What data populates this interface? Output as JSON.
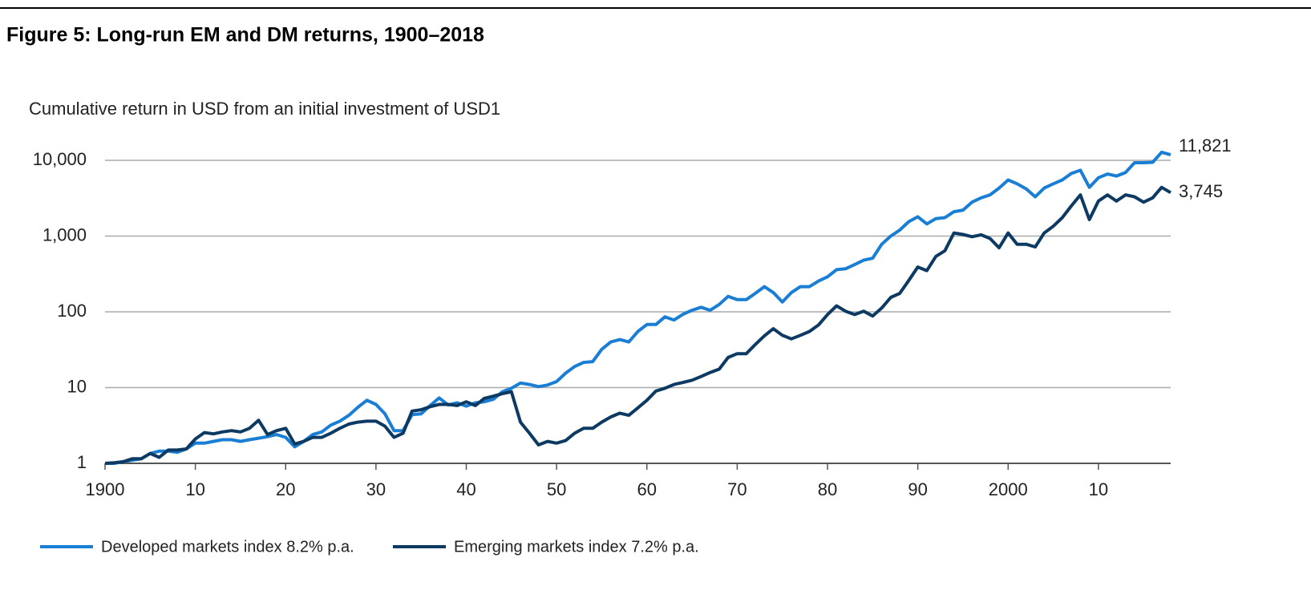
{
  "chart_data": {
    "type": "line",
    "title": "Figure 5: Long-run EM and DM returns, 1900–2018",
    "subtitle": "Cumulative return in USD from an initial investment of USD1",
    "x": [
      1900,
      1901,
      1902,
      1903,
      1904,
      1905,
      1906,
      1907,
      1908,
      1909,
      1910,
      1911,
      1912,
      1913,
      1914,
      1915,
      1916,
      1917,
      1918,
      1919,
      1920,
      1921,
      1922,
      1923,
      1924,
      1925,
      1926,
      1927,
      1928,
      1929,
      1930,
      1931,
      1932,
      1933,
      1934,
      1935,
      1936,
      1937,
      1938,
      1939,
      1940,
      1941,
      1942,
      1943,
      1944,
      1945,
      1946,
      1947,
      1948,
      1949,
      1950,
      1951,
      1952,
      1953,
      1954,
      1955,
      1956,
      1957,
      1958,
      1959,
      1960,
      1961,
      1962,
      1963,
      1964,
      1965,
      1966,
      1967,
      1968,
      1969,
      1970,
      1971,
      1972,
      1973,
      1974,
      1975,
      1976,
      1977,
      1978,
      1979,
      1980,
      1981,
      1982,
      1983,
      1984,
      1985,
      1986,
      1987,
      1988,
      1989,
      1990,
      1991,
      1992,
      1993,
      1994,
      1995,
      1996,
      1997,
      1998,
      1999,
      2000,
      2001,
      2002,
      2003,
      2004,
      2005,
      2006,
      2007,
      2008,
      2009,
      2010,
      2011,
      2012,
      2013,
      2014,
      2015,
      2016,
      2017,
      2018
    ],
    "series": [
      {
        "name": "Developed markets index 8.2% p.a.",
        "color": "#1a7fd4",
        "end_label": "11,821",
        "values": [
          1,
          1,
          1.05,
          1.1,
          1.15,
          1.35,
          1.45,
          1.45,
          1.4,
          1.55,
          1.85,
          1.85,
          1.95,
          2.05,
          2.05,
          1.95,
          2.05,
          2.15,
          2.25,
          2.4,
          2.2,
          1.65,
          1.95,
          2.4,
          2.6,
          3.2,
          3.6,
          4.3,
          5.5,
          6.8,
          6,
          4.5,
          2.7,
          2.7,
          4.4,
          4.5,
          5.8,
          7.3,
          5.9,
          6.3,
          5.7,
          6.3,
          6.5,
          7,
          8.8,
          9.8,
          11.5,
          11,
          10.3,
          10.8,
          12,
          15.5,
          19,
          21.5,
          22,
          32,
          40,
          43,
          40,
          55,
          68,
          68,
          86,
          78,
          93,
          105,
          115,
          105,
          125,
          160,
          145,
          145,
          175,
          215,
          180,
          135,
          180,
          215,
          215,
          255,
          290,
          360,
          370,
          420,
          480,
          510,
          780,
          1000,
          1200,
          1550,
          1800,
          1450,
          1700,
          1750,
          2100,
          2200,
          2800,
          3200,
          3500,
          4300,
          5500,
          4900,
          4200,
          3300,
          4300,
          4900,
          5500,
          6700,
          7400,
          4400,
          5900,
          6600,
          6200,
          6900,
          9300,
          9300,
          9400,
          12800,
          11821
        ]
      },
      {
        "name": "Emerging markets index 7.2% p.a.",
        "color": "#0d3a63",
        "end_label": "3,745",
        "values": [
          1,
          1.02,
          1.05,
          1.15,
          1.15,
          1.35,
          1.2,
          1.5,
          1.5,
          1.55,
          2.1,
          2.55,
          2.45,
          2.6,
          2.7,
          2.6,
          2.9,
          3.7,
          2.4,
          2.7,
          2.9,
          1.8,
          1.95,
          2.2,
          2.2,
          2.5,
          2.9,
          3.3,
          3.5,
          3.6,
          3.6,
          3.1,
          2.2,
          2.5,
          4.9,
          5.1,
          5.6,
          6,
          6,
          5.8,
          6.5,
          5.8,
          7.2,
          7.7,
          8.3,
          8.8,
          3.5,
          2.5,
          1.75,
          1.95,
          1.85,
          2,
          2.5,
          2.9,
          2.9,
          3.5,
          4.1,
          4.6,
          4.3,
          5.4,
          6.8,
          9,
          9.8,
          11,
          11.7,
          12.5,
          14,
          15.8,
          17.5,
          25,
          28,
          28,
          37,
          48,
          60,
          49,
          44,
          49,
          55,
          67,
          92,
          120,
          102,
          92,
          102,
          88,
          112,
          155,
          175,
          260,
          390,
          350,
          540,
          640,
          1100,
          1050,
          980,
          1040,
          930,
          700,
          1100,
          780,
          780,
          720,
          1100,
          1350,
          1750,
          2500,
          3500,
          1650,
          2900,
          3500,
          2900,
          3500,
          3300,
          2800,
          3200,
          4400,
          3745
        ]
      }
    ],
    "xlim": [
      1900,
      2018
    ],
    "xticks": [
      1900,
      {
        "value": 1910,
        "label": "10"
      },
      {
        "value": 1920,
        "label": "20"
      },
      {
        "value": 1930,
        "label": "30"
      },
      {
        "value": 1940,
        "label": "40"
      },
      {
        "value": 1950,
        "label": "50"
      },
      {
        "value": 1960,
        "label": "60"
      },
      {
        "value": 1970,
        "label": "70"
      },
      {
        "value": 1980,
        "label": "80"
      },
      {
        "value": 1990,
        "label": "90"
      },
      2000,
      {
        "value": 2010,
        "label": "10"
      }
    ],
    "ylim": [
      1,
      10000
    ],
    "log_y": true,
    "yticks": [
      1,
      10,
      100,
      {
        "value": 1000,
        "label": "1,000"
      },
      {
        "value": 10000,
        "label": "10,000"
      }
    ],
    "grid": true
  }
}
